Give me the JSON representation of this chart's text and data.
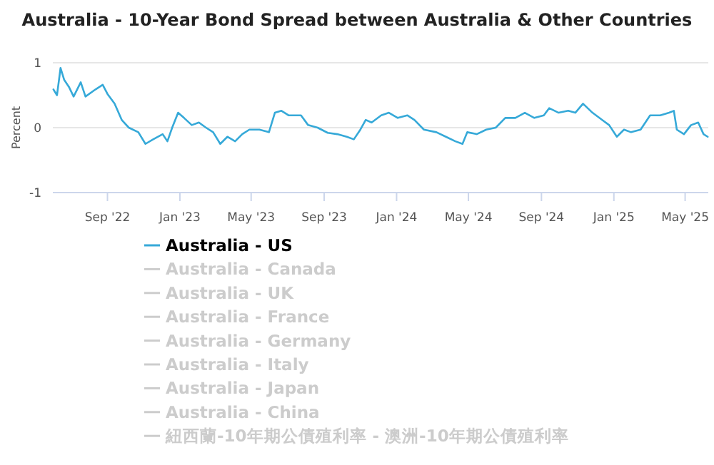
{
  "chart_data": {
    "type": "line",
    "title": "Australia - 10-Year Bond Spread between Australia & Other Countries",
    "ylabel": "Percent",
    "xlim": [
      "2022-06-01",
      "2025-06-09"
    ],
    "ylim": [
      -1,
      1
    ],
    "yticks": [
      -1,
      0,
      1
    ],
    "xticks": [
      {
        "value": "2022-09-01",
        "label": "Sep '22"
      },
      {
        "value": "2023-01-01",
        "label": "Jan '23"
      },
      {
        "value": "2023-05-01",
        "label": "May '23"
      },
      {
        "value": "2023-09-01",
        "label": "Sep '23"
      },
      {
        "value": "2024-01-01",
        "label": "Jan '24"
      },
      {
        "value": "2024-05-01",
        "label": "May '24"
      },
      {
        "value": "2024-09-01",
        "label": "Sep '24"
      },
      {
        "value": "2025-01-01",
        "label": "Jan '25"
      },
      {
        "value": "2025-05-01",
        "label": "May '25"
      }
    ],
    "grid": "y",
    "legend": "bottom",
    "line_style": "solid",
    "marker": "none",
    "series": [
      {
        "name": "Australia - US",
        "color": "#36a9d8",
        "x": [
          "2022-06-02",
          "2022-06-08",
          "2022-06-14",
          "2022-06-20",
          "2022-06-28",
          "2022-07-06",
          "2022-07-18",
          "2022-07-26",
          "2022-08-12",
          "2022-08-24",
          "2022-09-01",
          "2022-09-13",
          "2022-09-25",
          "2022-10-07",
          "2022-10-23",
          "2022-11-04",
          "2022-11-17",
          "2022-12-03",
          "2022-12-11",
          "2022-12-19",
          "2022-12-29",
          "2023-01-08",
          "2023-01-21",
          "2023-02-02",
          "2023-02-14",
          "2023-02-26",
          "2023-03-10",
          "2023-03-22",
          "2023-04-04",
          "2023-04-16",
          "2023-04-28",
          "2023-05-15",
          "2023-05-31",
          "2023-06-10",
          "2023-06-21",
          "2023-07-03",
          "2023-07-24",
          "2023-08-05",
          "2023-08-21",
          "2023-09-07",
          "2023-09-23",
          "2023-10-09",
          "2023-10-21",
          "2023-11-01",
          "2023-11-10",
          "2023-11-20",
          "2023-12-06",
          "2023-12-19",
          "2024-01-03",
          "2024-01-19",
          "2024-01-31",
          "2024-02-16",
          "2024-03-08",
          "2024-03-24",
          "2024-04-09",
          "2024-04-21",
          "2024-04-29",
          "2024-05-15",
          "2024-05-31",
          "2024-06-16",
          "2024-07-02",
          "2024-07-19",
          "2024-08-04",
          "2024-08-20",
          "2024-09-05",
          "2024-09-14",
          "2024-09-30",
          "2024-10-16",
          "2024-10-28",
          "2024-11-10",
          "2024-11-26",
          "2024-12-12",
          "2024-12-24",
          "2025-01-06",
          "2025-01-18",
          "2025-01-30",
          "2025-02-15",
          "2025-03-03",
          "2025-03-20",
          "2025-04-04",
          "2025-04-12",
          "2025-04-17",
          "2025-04-29",
          "2025-05-11",
          "2025-05-23",
          "2025-06-01",
          "2025-06-08"
        ],
        "values": [
          0.59,
          0.5,
          0.92,
          0.74,
          0.63,
          0.48,
          0.7,
          0.48,
          0.59,
          0.66,
          0.52,
          0.37,
          0.12,
          0.0,
          -0.07,
          -0.25,
          -0.18,
          -0.1,
          -0.21,
          0.0,
          0.23,
          0.15,
          0.04,
          0.08,
          0.0,
          -0.07,
          -0.25,
          -0.14,
          -0.21,
          -0.1,
          -0.03,
          -0.03,
          -0.07,
          0.23,
          0.26,
          0.19,
          0.19,
          0.04,
          0.0,
          -0.08,
          -0.1,
          -0.14,
          -0.18,
          -0.03,
          0.12,
          0.08,
          0.19,
          0.23,
          0.15,
          0.19,
          0.12,
          -0.03,
          -0.07,
          -0.14,
          -0.21,
          -0.25,
          -0.07,
          -0.1,
          -0.03,
          0.0,
          0.15,
          0.15,
          0.23,
          0.15,
          0.19,
          0.3,
          0.23,
          0.26,
          0.23,
          0.37,
          0.23,
          0.12,
          0.04,
          -0.14,
          -0.03,
          -0.07,
          -0.03,
          0.19,
          0.19,
          0.23,
          0.26,
          -0.03,
          -0.1,
          0.04,
          0.08,
          -0.1,
          -0.14
        ]
      },
      {
        "name": "Australia - Canada",
        "color": "#cccccc"
      },
      {
        "name": "Australia - UK",
        "color": "#cccccc"
      },
      {
        "name": "Australia - France",
        "color": "#cccccc"
      },
      {
        "name": "Australia - Germany",
        "color": "#cccccc"
      },
      {
        "name": "Australia - Italy",
        "color": "#cccccc"
      },
      {
        "name": "Australia - Japan",
        "color": "#cccccc"
      },
      {
        "name": "Australia - China",
        "color": "#cccccc"
      },
      {
        "name": "紐西蘭-10年期公債殖利率 - 澳洲-10年期公債殖利率",
        "color": "#cccccc"
      }
    ]
  }
}
